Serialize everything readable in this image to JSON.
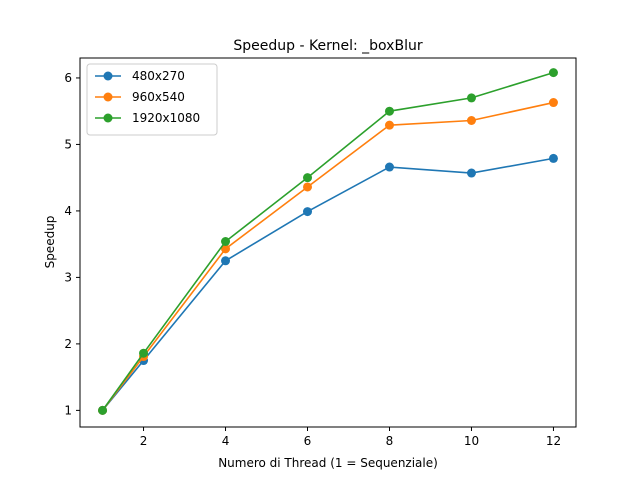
{
  "chart_data": {
    "type": "line",
    "title": "Speedup - Kernel: _boxBlur",
    "xlabel": "Numero di Thread (1 = Sequenziale)",
    "ylabel": "Speedup",
    "x": [
      1,
      2,
      4,
      6,
      8,
      10,
      12
    ],
    "xticks": [
      2,
      4,
      6,
      8,
      10,
      12
    ],
    "yticks": [
      1,
      2,
      3,
      4,
      5,
      6
    ],
    "xlim": [
      0.45,
      12.55
    ],
    "ylim": [
      0.75,
      6.3
    ],
    "grid": false,
    "legend_position": "top-left",
    "series": [
      {
        "name": "480x270",
        "color": "#1f77b4",
        "values": [
          1.0,
          1.75,
          3.25,
          3.99,
          4.66,
          4.57,
          4.79
        ]
      },
      {
        "name": "960x540",
        "color": "#ff7f0e",
        "values": [
          1.0,
          1.81,
          3.43,
          4.36,
          5.29,
          5.36,
          5.63
        ]
      },
      {
        "name": "1920x1080",
        "color": "#2ca02c",
        "values": [
          1.0,
          1.86,
          3.54,
          4.5,
          5.5,
          5.7,
          6.08
        ]
      }
    ]
  }
}
